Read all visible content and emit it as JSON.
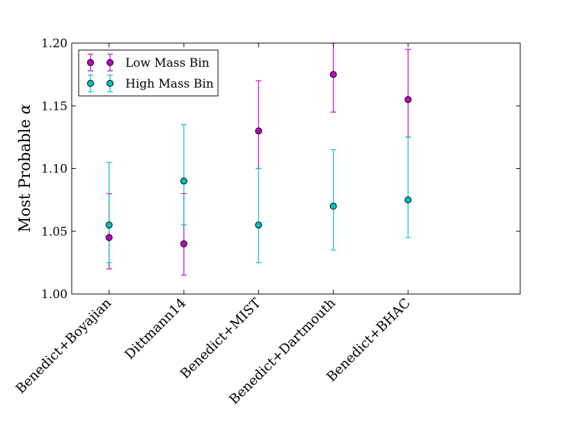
{
  "chart_data": {
    "type": "scatter",
    "title": "",
    "xlabel": "",
    "ylabel": "Most Probable",
    "ylabel_symbol": "α",
    "categories": [
      "Benedict+Boyajian",
      "Dittmann14",
      "Benedict+MIST",
      "Benedict+Dartmouth",
      "Benedict+BHAC"
    ],
    "ylim": [
      1.0,
      1.2
    ],
    "yticks": [
      "1.00",
      "1.05",
      "1.10",
      "1.15",
      "1.20"
    ],
    "x_index_range": [
      -0.5,
      5.5
    ],
    "legend_position": "top-left",
    "series": [
      {
        "name": "Low Mass Bin",
        "color": "#bf00bf",
        "values": [
          1.045,
          1.04,
          1.13,
          1.175,
          1.155
        ],
        "err_low": [
          1.02,
          1.015,
          1.1,
          1.145,
          1.125
        ],
        "err_high": [
          1.08,
          1.08,
          1.17,
          1.2,
          1.195
        ]
      },
      {
        "name": "High Mass Bin",
        "color": "#00bfbf",
        "values": [
          1.055,
          1.09,
          1.055,
          1.07,
          1.075
        ],
        "err_low": [
          1.025,
          1.055,
          1.025,
          1.035,
          1.045
        ],
        "err_high": [
          1.105,
          1.135,
          1.1,
          1.115,
          1.125
        ]
      }
    ]
  }
}
